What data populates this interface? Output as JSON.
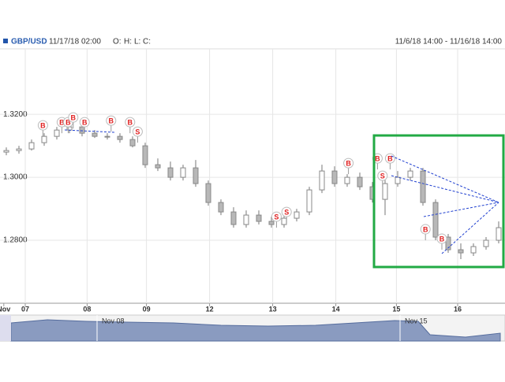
{
  "header": {
    "symbol": "GBP/USD",
    "datetime": "11/17/18 02:00",
    "ohlc_labels": [
      "O:",
      "H:",
      "L:",
      "C:"
    ],
    "range": "11/6/18 14:00 - 11/16/18 14:00"
  },
  "chart_data": {
    "type": "candlestick",
    "x": [
      0,
      1,
      2,
      3,
      4,
      5,
      6,
      7,
      8,
      9,
      10,
      11,
      12,
      13,
      14,
      15,
      16,
      17,
      18,
      19,
      20,
      21,
      22,
      23,
      24,
      25,
      26,
      27,
      28,
      29,
      30,
      31,
      32,
      33,
      34,
      35,
      36,
      37,
      38,
      39
    ],
    "open": [
      1.308,
      1.3085,
      1.309,
      1.311,
      1.313,
      1.315,
      1.316,
      1.314,
      1.313,
      1.313,
      1.312,
      1.31,
      1.304,
      1.303,
      1.3,
      1.303,
      1.298,
      1.292,
      1.289,
      1.285,
      1.288,
      1.286,
      1.285,
      1.287,
      1.289,
      1.296,
      1.302,
      1.298,
      1.3,
      1.297,
      1.293,
      1.298,
      1.3,
      1.302,
      1.292,
      1.281,
      1.277,
      1.276,
      1.278,
      1.28
    ],
    "high": [
      1.3095,
      1.31,
      1.312,
      1.314,
      1.316,
      1.3175,
      1.317,
      1.315,
      1.314,
      1.314,
      1.313,
      1.311,
      1.306,
      1.305,
      1.304,
      1.3055,
      1.299,
      1.293,
      1.2905,
      1.2895,
      1.2895,
      1.2875,
      1.288,
      1.29,
      1.297,
      1.304,
      1.3035,
      1.301,
      1.3015,
      1.2985,
      1.3005,
      1.302,
      1.303,
      1.303,
      1.293,
      1.282,
      1.279,
      1.279,
      1.281,
      1.286
    ],
    "low": [
      1.307,
      1.3075,
      1.3085,
      1.31,
      1.312,
      1.314,
      1.313,
      1.3125,
      1.312,
      1.311,
      1.3095,
      1.303,
      1.302,
      1.299,
      1.299,
      1.297,
      1.291,
      1.288,
      1.284,
      1.284,
      1.285,
      1.284,
      1.284,
      1.286,
      1.288,
      1.295,
      1.297,
      1.297,
      1.296,
      1.292,
      1.288,
      1.297,
      1.299,
      1.291,
      1.28,
      1.276,
      1.274,
      1.275,
      1.277,
      1.279
    ],
    "close": [
      1.3085,
      1.309,
      1.311,
      1.313,
      1.315,
      1.316,
      1.314,
      1.313,
      1.313,
      1.312,
      1.31,
      1.304,
      1.303,
      1.3,
      1.303,
      1.298,
      1.292,
      1.289,
      1.285,
      1.288,
      1.286,
      1.285,
      1.287,
      1.289,
      1.296,
      1.302,
      1.298,
      1.3,
      1.297,
      1.293,
      1.298,
      1.3,
      1.302,
      1.292,
      1.281,
      1.277,
      1.276,
      1.278,
      1.28,
      1.284
    ],
    "color": "#b8b8b8",
    "xlim": [
      0,
      40
    ],
    "xticks": [
      {
        "value": 0.3,
        "label": "Nov"
      },
      {
        "value": 2,
        "label": "07"
      },
      {
        "value": 6.9,
        "label": "08"
      },
      {
        "value": 11.6,
        "label": "09"
      },
      {
        "value": 16.6,
        "label": "12"
      },
      {
        "value": 21.6,
        "label": "13"
      },
      {
        "value": 26.6,
        "label": "14"
      },
      {
        "value": 31.4,
        "label": "15"
      },
      {
        "value": 36.25,
        "label": "16"
      }
    ],
    "ylim": [
      1.26,
      1.3408
    ],
    "yticks": [
      {
        "value": 1.28,
        "label": "1.2800"
      },
      {
        "value": 1.3,
        "label": "1.3000"
      },
      {
        "value": 1.32,
        "label": "1.3200"
      }
    ],
    "grid": true,
    "annotations": [
      {
        "x": 3.4,
        "y": 1.3165,
        "label": "B"
      },
      {
        "x": 4.9,
        "y": 1.3175,
        "label": "B"
      },
      {
        "x": 5.4,
        "y": 1.3175,
        "label": "B"
      },
      {
        "x": 5.8,
        "y": 1.319,
        "label": "B"
      },
      {
        "x": 6.7,
        "y": 1.3175,
        "label": "B"
      },
      {
        "x": 8.8,
        "y": 1.318,
        "label": "B"
      },
      {
        "x": 10.3,
        "y": 1.3175,
        "label": "B"
      },
      {
        "x": 10.9,
        "y": 1.3145,
        "label": "S"
      },
      {
        "x": 21.9,
        "y": 1.2875,
        "label": "S"
      },
      {
        "x": 22.7,
        "y": 1.289,
        "label": "S"
      },
      {
        "x": 27.6,
        "y": 1.3045,
        "label": "B"
      },
      {
        "x": 29.9,
        "y": 1.306,
        "label": "B"
      },
      {
        "x": 30.3,
        "y": 1.3005,
        "label": "S"
      },
      {
        "x": 30.9,
        "y": 1.306,
        "label": "B"
      },
      {
        "x": 33.7,
        "y": 1.2835,
        "label": "B"
      },
      {
        "x": 35.0,
        "y": 1.2805,
        "label": "B"
      }
    ]
  },
  "navigator": {
    "labels": [
      "Nov 08",
      "Nov 15"
    ]
  }
}
